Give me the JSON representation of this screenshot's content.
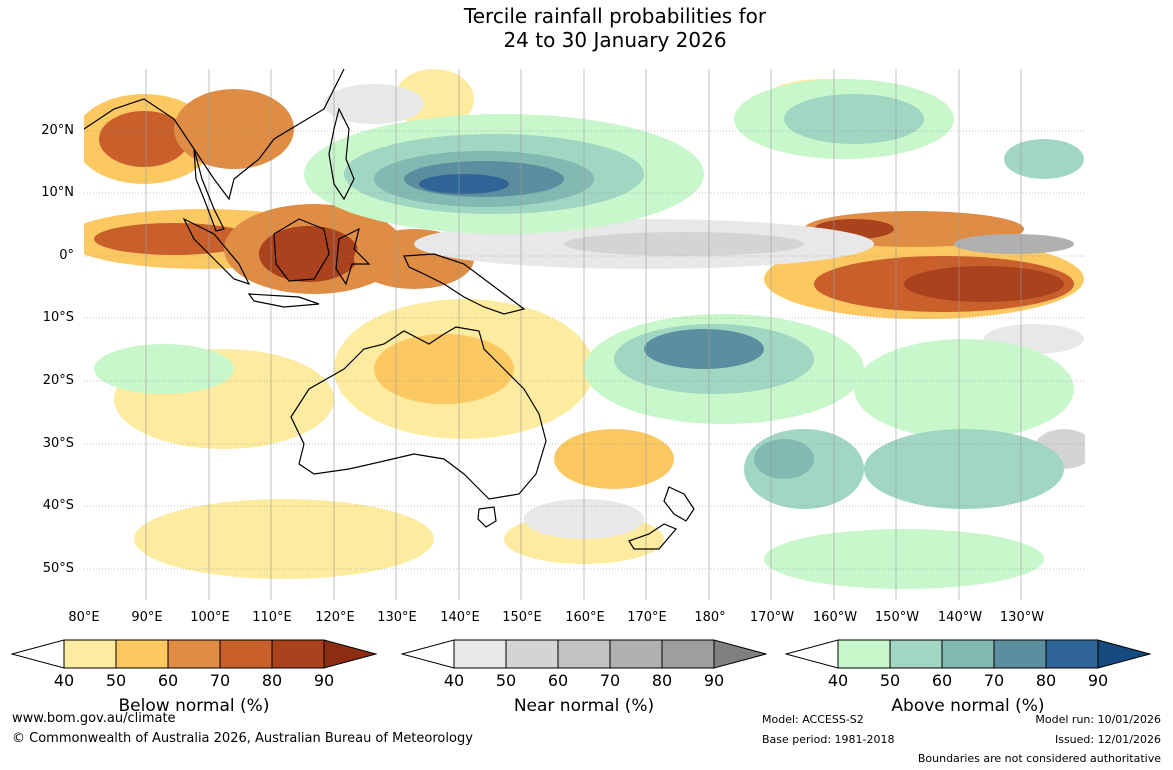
{
  "title_line1": "Tercile rainfall probabilities for",
  "title_line2": "24 to 30 January 2026",
  "lat_labels": [
    "20°N",
    "10°N",
    "0°",
    "10°S",
    "20°S",
    "30°S",
    "40°S",
    "50°S"
  ],
  "lon_labels": [
    "80°E",
    "90°E",
    "100°E",
    "110°E",
    "120°E",
    "130°E",
    "140°E",
    "150°E",
    "160°E",
    "170°E",
    "180°",
    "170°W",
    "160°W",
    "150°W",
    "140°W",
    "130°W"
  ],
  "colorbars": [
    {
      "title": "Below normal (%)",
      "ticks": [
        "40",
        "50",
        "60",
        "70",
        "80",
        "90"
      ],
      "colors": [
        "#ffffff",
        "#fdeb9f",
        "#fcc862",
        "#df8c45",
        "#c9602c",
        "#a9421d",
        "#8c2d12"
      ]
    },
    {
      "title": "Near normal (%)",
      "ticks": [
        "40",
        "50",
        "60",
        "70",
        "80",
        "90"
      ],
      "colors": [
        "#ffffff",
        "#e8e8e8",
        "#d4d4d4",
        "#c2c2c2",
        "#b0b0b0",
        "#9e9e9e",
        "#808080"
      ]
    },
    {
      "title": "Above normal (%)",
      "ticks": [
        "40",
        "50",
        "60",
        "70",
        "80",
        "90"
      ],
      "colors": [
        "#ffffff",
        "#c8f7cb",
        "#a0d6c2",
        "#82b9b2",
        "#5b8fa0",
        "#2f6496",
        "#154a7e"
      ]
    }
  ],
  "footer": {
    "website": "www.bom.gov.au/climate",
    "copyright": "© Commonwealth of Australia 2026, Australian Bureau of Meteorology",
    "model": "Model: ACCESS-S2",
    "base_period": "Base period: 1981-2018",
    "model_run": "Model run: 10/01/2026",
    "issued": "Issued: 12/01/2026",
    "disclaimer": "Boundaries are not considered authoritative"
  }
}
